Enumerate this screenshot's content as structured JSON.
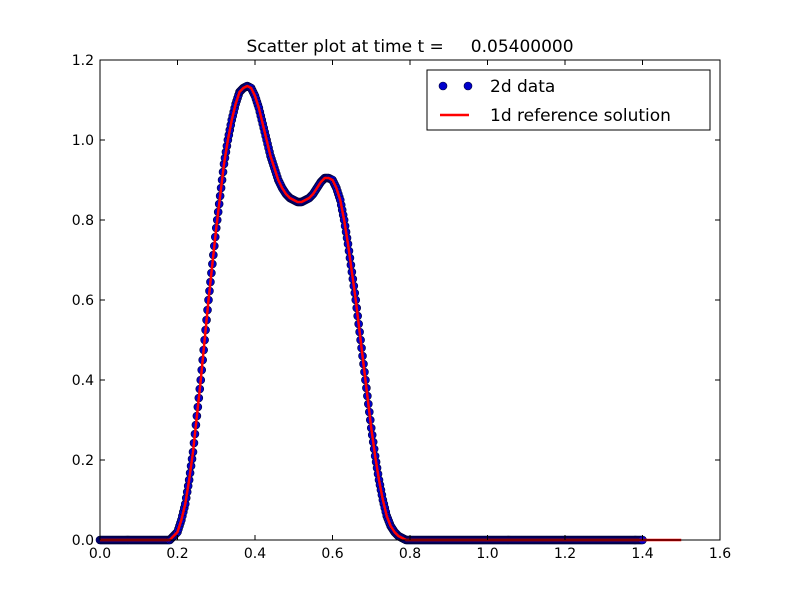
{
  "chart_data": {
    "type": "scatter",
    "title": "Scatter plot at time t =     0.05400000",
    "xlabel": "",
    "ylabel": "",
    "xlim": [
      0.0,
      1.6
    ],
    "ylim": [
      0.0,
      1.2
    ],
    "x_ticks": [
      "0.0",
      "0.2",
      "0.4",
      "0.6",
      "0.8",
      "1.0",
      "1.2",
      "1.4",
      "1.6"
    ],
    "y_ticks": [
      "0.0",
      "0.2",
      "0.4",
      "0.6",
      "0.8",
      "1.0",
      "1.2"
    ],
    "grid": false,
    "legend_position": "top-right",
    "colors": {
      "scatter": "#0000cc",
      "scatter_edge": "#000033",
      "line": "#ff0000"
    },
    "series": [
      {
        "name": "2d data",
        "kind": "scatter",
        "x": [
          0.0,
          0.02,
          0.04,
          0.06,
          0.08,
          0.1,
          0.12,
          0.14,
          0.16,
          0.18,
          0.19,
          0.2,
          0.21,
          0.22,
          0.23,
          0.24,
          0.25,
          0.26,
          0.27,
          0.28,
          0.29,
          0.3,
          0.31,
          0.32,
          0.33,
          0.34,
          0.35,
          0.36,
          0.37,
          0.38,
          0.39,
          0.4,
          0.41,
          0.42,
          0.43,
          0.44,
          0.45,
          0.46,
          0.47,
          0.48,
          0.49,
          0.5,
          0.51,
          0.52,
          0.53,
          0.54,
          0.55,
          0.56,
          0.57,
          0.58,
          0.59,
          0.6,
          0.61,
          0.62,
          0.63,
          0.64,
          0.65,
          0.66,
          0.67,
          0.68,
          0.69,
          0.7,
          0.71,
          0.72,
          0.73,
          0.74,
          0.75,
          0.76,
          0.77,
          0.78,
          0.79,
          0.8,
          0.81,
          0.82,
          0.84,
          0.86,
          0.9,
          0.95,
          1.0,
          1.05,
          1.1,
          1.15,
          1.2,
          1.25,
          1.3,
          1.35,
          1.4
        ],
        "y": [
          0.0,
          0.0,
          0.0,
          0.0,
          0.0,
          0.0,
          0.0,
          0.0,
          0.0,
          0.0,
          0.01,
          0.02,
          0.05,
          0.09,
          0.15,
          0.22,
          0.31,
          0.4,
          0.5,
          0.6,
          0.69,
          0.78,
          0.86,
          0.94,
          1.0,
          1.05,
          1.09,
          1.12,
          1.13,
          1.135,
          1.13,
          1.11,
          1.08,
          1.04,
          1.0,
          0.96,
          0.93,
          0.9,
          0.88,
          0.865,
          0.855,
          0.85,
          0.845,
          0.845,
          0.85,
          0.855,
          0.865,
          0.88,
          0.895,
          0.905,
          0.905,
          0.9,
          0.88,
          0.85,
          0.8,
          0.74,
          0.67,
          0.6,
          0.52,
          0.44,
          0.36,
          0.28,
          0.21,
          0.15,
          0.1,
          0.06,
          0.035,
          0.02,
          0.01,
          0.005,
          0.0,
          0.0,
          0.0,
          0.0,
          0.0,
          0.0,
          0.0,
          0.0,
          0.0,
          0.0,
          0.0,
          0.0,
          0.0,
          0.0,
          0.0,
          0.0,
          0.0
        ]
      },
      {
        "name": "1d reference solution",
        "kind": "line",
        "x": [
          0.0,
          0.18,
          0.19,
          0.2,
          0.21,
          0.22,
          0.23,
          0.24,
          0.25,
          0.26,
          0.27,
          0.28,
          0.29,
          0.3,
          0.31,
          0.32,
          0.33,
          0.34,
          0.35,
          0.36,
          0.37,
          0.38,
          0.39,
          0.4,
          0.41,
          0.42,
          0.43,
          0.44,
          0.45,
          0.46,
          0.47,
          0.48,
          0.49,
          0.5,
          0.51,
          0.52,
          0.53,
          0.54,
          0.55,
          0.56,
          0.57,
          0.58,
          0.59,
          0.6,
          0.61,
          0.62,
          0.63,
          0.64,
          0.65,
          0.66,
          0.67,
          0.68,
          0.69,
          0.7,
          0.71,
          0.72,
          0.73,
          0.74,
          0.75,
          0.76,
          0.77,
          0.78,
          0.79,
          0.8,
          0.82,
          1.5
        ],
        "y": [
          0.0,
          0.0,
          0.01,
          0.02,
          0.05,
          0.09,
          0.15,
          0.22,
          0.31,
          0.4,
          0.5,
          0.6,
          0.69,
          0.78,
          0.86,
          0.94,
          1.0,
          1.05,
          1.09,
          1.12,
          1.13,
          1.135,
          1.13,
          1.11,
          1.08,
          1.04,
          1.0,
          0.96,
          0.93,
          0.9,
          0.88,
          0.865,
          0.855,
          0.85,
          0.845,
          0.845,
          0.85,
          0.855,
          0.865,
          0.88,
          0.895,
          0.905,
          0.905,
          0.9,
          0.88,
          0.85,
          0.8,
          0.74,
          0.67,
          0.6,
          0.52,
          0.44,
          0.36,
          0.28,
          0.21,
          0.15,
          0.1,
          0.06,
          0.035,
          0.02,
          0.01,
          0.005,
          0.0,
          0.0,
          0.0,
          0.0
        ]
      }
    ]
  }
}
